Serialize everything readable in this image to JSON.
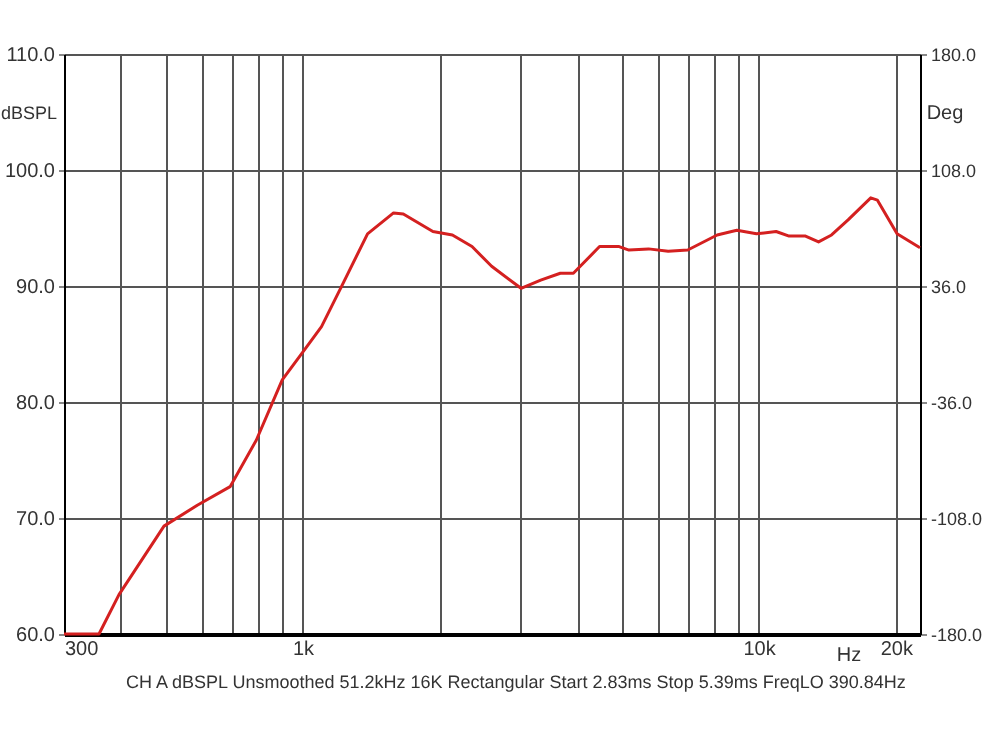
{
  "chart_data": {
    "type": "line",
    "ylabel": "dBSPL",
    "y2label": "Deg",
    "xlabel": "Hz",
    "annotations": [
      "CH A   dBSPL   Unsmoothed   51.2kHz   16K   Rectangular   Start 2.83ms   Stop 5.39ms   FreqLO 390.84Hz"
    ],
    "log": "x",
    "grid": true,
    "line_style": "solid",
    "xlim": [
      300,
      22600
    ],
    "xticks": [
      {
        "value": 300,
        "label": "300"
      },
      {
        "value": 400,
        "label": null
      },
      {
        "value": 500,
        "label": null
      },
      {
        "value": 600,
        "label": null
      },
      {
        "value": 700,
        "label": null
      },
      {
        "value": 800,
        "label": null
      },
      {
        "value": 900,
        "label": null
      },
      {
        "value": 1000,
        "label": "1k"
      },
      {
        "value": 2000,
        "label": null
      },
      {
        "value": 3000,
        "label": null
      },
      {
        "value": 4000,
        "label": null
      },
      {
        "value": 5000,
        "label": null
      },
      {
        "value": 6000,
        "label": null
      },
      {
        "value": 7000,
        "label": null
      },
      {
        "value": 8000,
        "label": null
      },
      {
        "value": 9000,
        "label": null
      },
      {
        "value": 10000,
        "label": "10k"
      },
      {
        "value": 20000,
        "label": "20k"
      }
    ],
    "ylim": [
      60,
      110
    ],
    "yticks": [
      {
        "value": 60,
        "label": "60.0"
      },
      {
        "value": 70,
        "label": "70.0"
      },
      {
        "value": 80,
        "label": "80.0"
      },
      {
        "value": 90,
        "label": "90.0"
      },
      {
        "value": 100,
        "label": "100.0"
      },
      {
        "value": 110,
        "label": "110.0"
      }
    ],
    "y2lim": [
      -180,
      180
    ],
    "y2ticks": [
      {
        "value": -180,
        "label": "-180.0"
      },
      {
        "value": -108,
        "label": "-108.0"
      },
      {
        "value": -36,
        "label": "-36.0"
      },
      {
        "value": 36,
        "label": "36.0"
      },
      {
        "value": 108,
        "label": "108.0"
      },
      {
        "value": 180,
        "label": "180.0"
      }
    ],
    "series": [
      {
        "color": "#d42020",
        "x": [
          300,
          358,
          396,
          497,
          588,
          694,
          792,
          903,
          997,
          1101,
          1216,
          1389,
          1584,
          1664,
          1932,
          2132,
          2354,
          2599,
          3015,
          3330,
          3676,
          3927,
          4482,
          4948,
          5199,
          5740,
          6337,
          6996,
          8116,
          8963,
          9899,
          10927,
          11671,
          12678,
          13542,
          14461,
          15719,
          17625,
          18231,
          20130,
          22600
        ],
        "values": [
          60,
          60,
          63.4,
          69.3,
          71.1,
          72.7,
          76.7,
          81.9,
          84.2,
          86.5,
          89.9,
          94.5,
          96.3,
          96.2,
          94.7,
          94.4,
          93.4,
          91.7,
          89.8,
          90.5,
          91.1,
          91.1,
          93.4,
          93.4,
          93.1,
          93.2,
          93.0,
          93.1,
          94.4,
          94.8,
          94.5,
          94.7,
          94.3,
          94.3,
          93.8,
          94.4,
          95.7,
          97.6,
          97.4,
          94.5,
          93.3
        ]
      }
    ]
  }
}
